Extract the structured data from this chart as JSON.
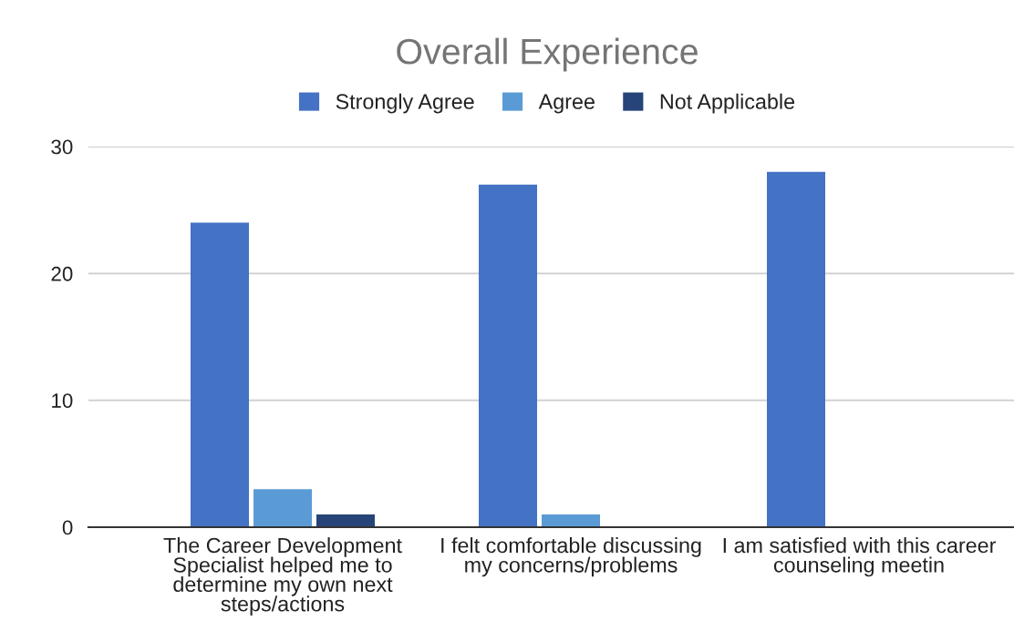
{
  "chart_data": {
    "type": "bar",
    "title": "Overall Experience",
    "categories": [
      "The Career Development Specialist helped me to determine my own next steps/actions",
      "I felt comfortable discussing my concerns/problems",
      "I am satisfied with this career counseling meetin"
    ],
    "series": [
      {
        "name": "Strongly Agree",
        "color": "#4472c4",
        "values": [
          24,
          27,
          28
        ]
      },
      {
        "name": "Agree",
        "color": "#5b9bd5",
        "values": [
          3,
          1,
          null
        ]
      },
      {
        "name": "Not Applicable",
        "color": "#264478",
        "values": [
          1,
          null,
          null
        ]
      }
    ],
    "ylim": [
      0,
      30
    ],
    "yticks": [
      0,
      10,
      20,
      30
    ],
    "grid": "y",
    "legend": "top"
  }
}
